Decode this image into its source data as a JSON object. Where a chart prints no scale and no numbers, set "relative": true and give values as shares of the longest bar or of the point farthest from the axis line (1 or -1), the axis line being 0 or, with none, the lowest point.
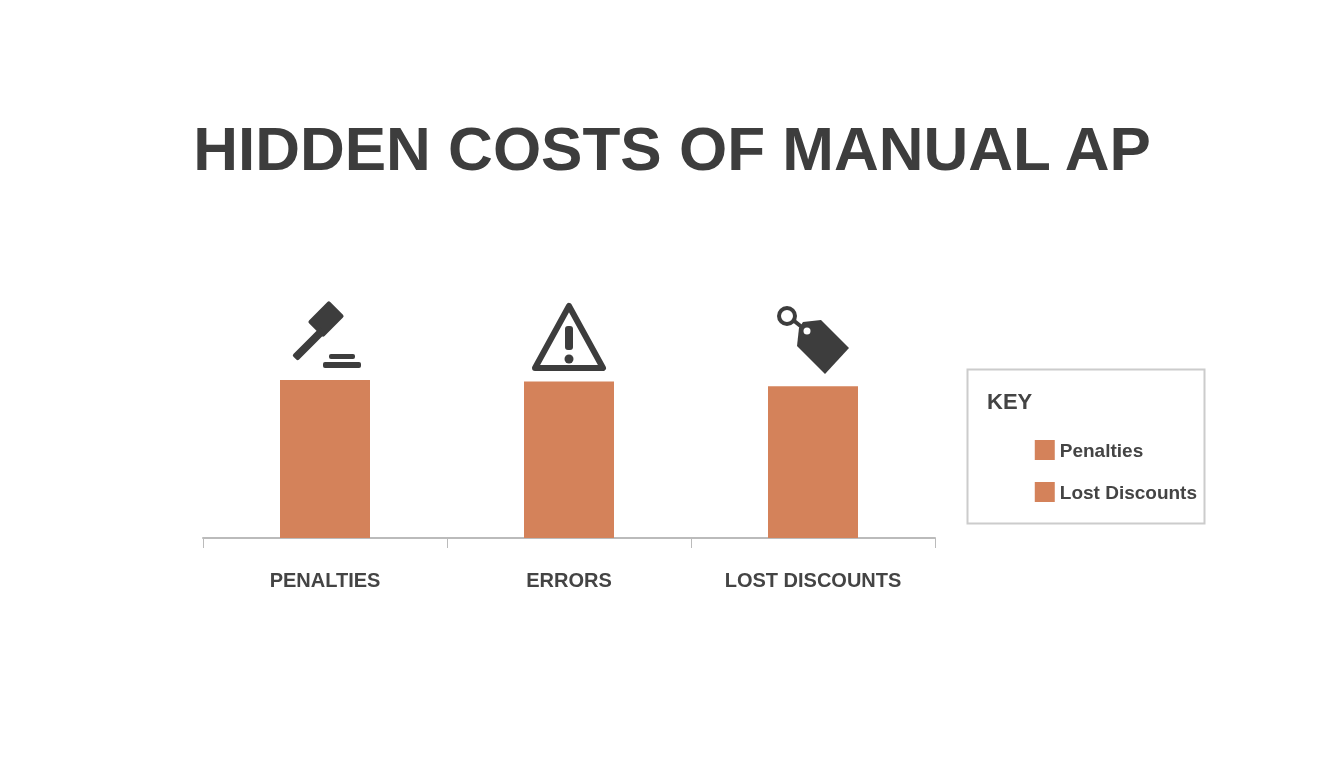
{
  "chart_data": {
    "type": "bar",
    "title": "HIDDEN COSTS OF MANUAL AP",
    "relative": true,
    "categories": [
      "PENALTIES",
      "ERRORS",
      "LOST DISCOUNTS"
    ],
    "series": [
      {
        "name": "Penalties",
        "color": "#d4825a",
        "values": [
          1,
          0.99,
          null
        ]
      },
      {
        "name": "Lost Discounts",
        "color": "#d4825a",
        "values": [
          null,
          null,
          0.96
        ]
      }
    ],
    "legend_title": "KEY",
    "legend": "right"
  }
}
